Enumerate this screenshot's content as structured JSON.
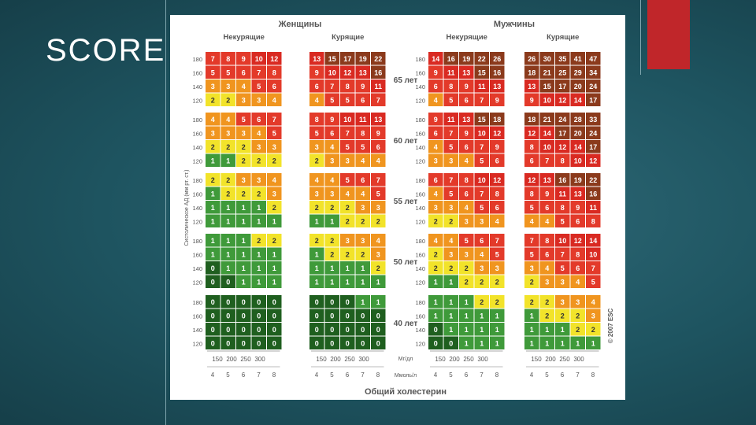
{
  "slide": {
    "title": "SCORE"
  },
  "chart_data": {
    "type": "heatmap",
    "sex_titles": [
      "Женщины",
      "Мужчины"
    ],
    "group_titles": [
      "Некурящие",
      "Курящие",
      "Некурящие",
      "Курящие"
    ],
    "age_labels": [
      "65 лет",
      "60 лет",
      "55 лет",
      "50 лет",
      "40 лет"
    ],
    "bp_labels": [
      "180",
      "160",
      "140",
      "120"
    ],
    "y_axis_label": "Систолическое АД (мм рт. ст.)",
    "x_axis_title": "Общий холестерин",
    "mg_unit": "Мг/дл",
    "mmol_unit": "Ммоль/л",
    "mg_ticks": [
      "150",
      "200",
      "250",
      "300"
    ],
    "mmol_ticks": [
      "4",
      "5",
      "6",
      "7",
      "8"
    ],
    "copyright": "© 2007 ESC",
    "colors": {
      "c0": "#1f5f1f",
      "c1": "#3f9a3a",
      "c2": "#f2e32a",
      "c3": "#f0951f",
      "c4": "#e33a2a",
      "c10": "#d92a22",
      "c15": "#8b3a1c"
    },
    "blocks": [
      [
        [
          7,
          8,
          9,
          10,
          12
        ],
        [
          5,
          5,
          6,
          7,
          8
        ],
        [
          3,
          3,
          4,
          5,
          6
        ],
        [
          2,
          2,
          3,
          3,
          4
        ]
      ],
      [
        [
          13,
          15,
          17,
          19,
          22
        ],
        [
          9,
          10,
          12,
          13,
          16
        ],
        [
          6,
          7,
          8,
          9,
          11
        ],
        [
          4,
          5,
          5,
          6,
          7
        ]
      ],
      [
        [
          14,
          16,
          19,
          22,
          26
        ],
        [
          9,
          11,
          13,
          15,
          16
        ],
        [
          6,
          8,
          9,
          11,
          13
        ],
        [
          4,
          5,
          6,
          7,
          9
        ]
      ],
      [
        [
          26,
          30,
          35,
          41,
          47
        ],
        [
          18,
          21,
          25,
          29,
          34
        ],
        [
          13,
          15,
          17,
          20,
          24
        ],
        [
          9,
          10,
          12,
          14,
          17
        ]
      ],
      [
        [
          4,
          4,
          5,
          6,
          7
        ],
        [
          3,
          3,
          3,
          4,
          5
        ],
        [
          2,
          2,
          2,
          3,
          3
        ],
        [
          1,
          1,
          2,
          2,
          2
        ]
      ],
      [
        [
          8,
          9,
          10,
          11,
          13
        ],
        [
          5,
          6,
          7,
          8,
          9
        ],
        [
          3,
          4,
          5,
          5,
          6
        ],
        [
          2,
          3,
          3,
          4,
          4
        ]
      ],
      [
        [
          9,
          11,
          13,
          15,
          18
        ],
        [
          6,
          7,
          9,
          10,
          12
        ],
        [
          4,
          5,
          6,
          7,
          9
        ],
        [
          3,
          3,
          4,
          5,
          6
        ]
      ],
      [
        [
          18,
          21,
          24,
          28,
          33
        ],
        [
          12,
          14,
          17,
          20,
          24
        ],
        [
          8,
          10,
          12,
          14,
          17
        ],
        [
          6,
          7,
          8,
          10,
          12
        ]
      ],
      [
        [
          2,
          2,
          3,
          3,
          4
        ],
        [
          1,
          2,
          2,
          2,
          3
        ],
        [
          1,
          1,
          1,
          1,
          2
        ],
        [
          1,
          1,
          1,
          1,
          1
        ]
      ],
      [
        [
          4,
          4,
          5,
          6,
          7
        ],
        [
          3,
          3,
          4,
          4,
          5
        ],
        [
          2,
          2,
          2,
          3,
          3
        ],
        [
          1,
          1,
          2,
          2,
          2
        ]
      ],
      [
        [
          6,
          7,
          8,
          10,
          12
        ],
        [
          4,
          5,
          6,
          7,
          8
        ],
        [
          3,
          3,
          4,
          5,
          6
        ],
        [
          2,
          2,
          3,
          3,
          4
        ]
      ],
      [
        [
          12,
          13,
          16,
          19,
          22
        ],
        [
          8,
          9,
          11,
          13,
          16
        ],
        [
          5,
          6,
          8,
          9,
          11
        ],
        [
          4,
          4,
          5,
          6,
          8
        ]
      ],
      [
        [
          1,
          1,
          1,
          2,
          2
        ],
        [
          1,
          1,
          1,
          1,
          1
        ],
        [
          0,
          1,
          1,
          1,
          1
        ],
        [
          0,
          0,
          1,
          1,
          1
        ]
      ],
      [
        [
          2,
          2,
          3,
          3,
          4
        ],
        [
          1,
          2,
          2,
          2,
          3
        ],
        [
          1,
          1,
          1,
          1,
          2
        ],
        [
          1,
          1,
          1,
          1,
          1
        ]
      ],
      [
        [
          4,
          4,
          5,
          6,
          7
        ],
        [
          2,
          3,
          3,
          4,
          5
        ],
        [
          2,
          2,
          2,
          3,
          3
        ],
        [
          1,
          1,
          2,
          2,
          2
        ]
      ],
      [
        [
          7,
          8,
          10,
          12,
          14
        ],
        [
          5,
          6,
          7,
          8,
          10
        ],
        [
          3,
          4,
          5,
          6,
          7
        ],
        [
          2,
          3,
          3,
          4,
          5
        ]
      ],
      [
        [
          0,
          0,
          0,
          0,
          0
        ],
        [
          0,
          0,
          0,
          0,
          0
        ],
        [
          0,
          0,
          0,
          0,
          0
        ],
        [
          0,
          0,
          0,
          0,
          0
        ]
      ],
      [
        [
          0,
          0,
          0,
          1,
          1
        ],
        [
          0,
          0,
          0,
          0,
          0
        ],
        [
          0,
          0,
          0,
          0,
          0
        ],
        [
          0,
          0,
          0,
          0,
          0
        ]
      ],
      [
        [
          1,
          1,
          1,
          2,
          2
        ],
        [
          1,
          1,
          1,
          1,
          1
        ],
        [
          0,
          1,
          1,
          1,
          1
        ],
        [
          0,
          0,
          1,
          1,
          1
        ]
      ],
      [
        [
          2,
          2,
          3,
          3,
          4
        ],
        [
          1,
          2,
          2,
          2,
          3
        ],
        [
          1,
          1,
          1,
          2,
          2
        ],
        [
          1,
          1,
          1,
          1,
          1
        ]
      ]
    ]
  }
}
